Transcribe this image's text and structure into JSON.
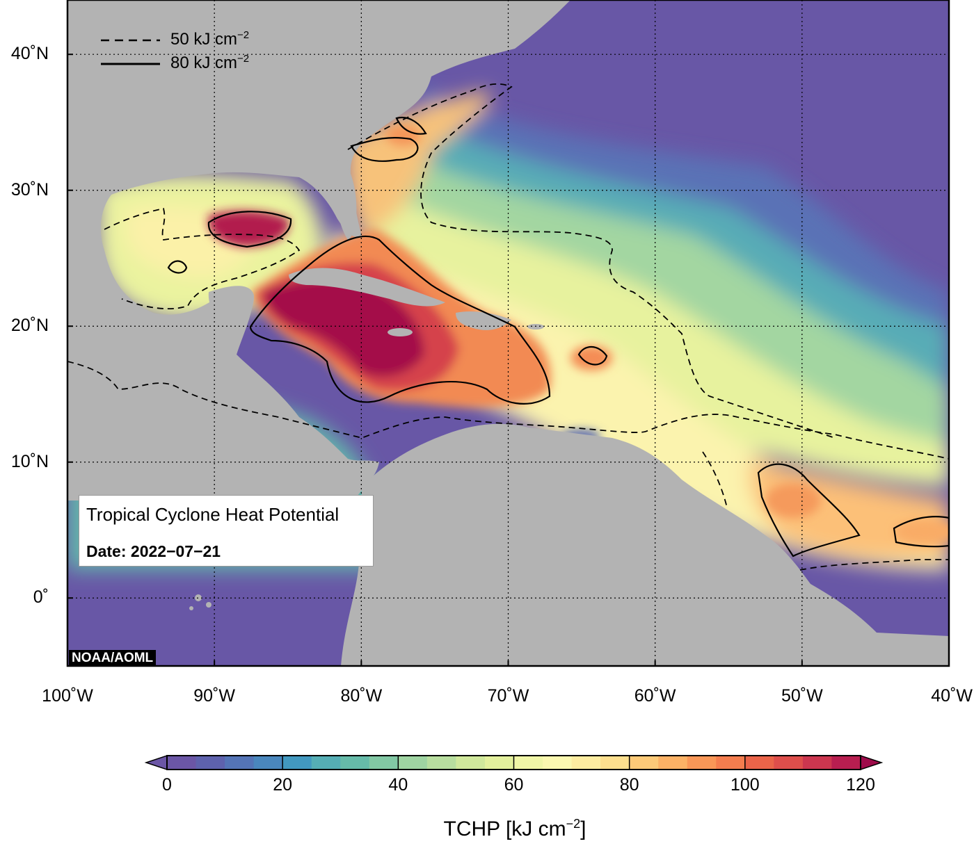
{
  "map": {
    "title": "Tropical Cyclone Heat Potential",
    "date_text": "Date: 2022−07−21",
    "credit": "NOAA/AOML",
    "extent": {
      "lon": [
        -100,
        -40
      ],
      "lat": [
        -5,
        44
      ]
    },
    "lat_ticks": [
      {
        "value": 40,
        "label": "40˚N"
      },
      {
        "value": 30,
        "label": "30˚N"
      },
      {
        "value": 20,
        "label": "20˚N"
      },
      {
        "value": 10,
        "label": "10˚N"
      },
      {
        "value": 0,
        "label": "0˚"
      }
    ],
    "lon_ticks": [
      {
        "value": -100,
        "label": "100˚W"
      },
      {
        "value": -90,
        "label": "90˚W"
      },
      {
        "value": -80,
        "label": "80˚W"
      },
      {
        "value": -70,
        "label": "70˚W"
      },
      {
        "value": -60,
        "label": "60˚W"
      },
      {
        "value": -50,
        "label": "50˚W"
      },
      {
        "value": -40,
        "label": "40˚W"
      }
    ],
    "contour_legend": {
      "dashed": "50 kJ cm",
      "solid": "80 kJ cm",
      "exponent": "−2"
    }
  },
  "colorbar": {
    "title": "TCHP [kJ cm",
    "title_exponent": "−2",
    "title_close": "]",
    "range": [
      0,
      120
    ],
    "step": 5,
    "tick_labels": [
      "0",
      "20",
      "40",
      "60",
      "80",
      "100",
      "120"
    ],
    "colors": [
      "#6b56a6",
      "#5e62ad",
      "#5474b6",
      "#4a87bd",
      "#4299c0",
      "#55aeb5",
      "#66bba9",
      "#82c8a4",
      "#9fd4a2",
      "#b8de9f",
      "#d0e89c",
      "#e3f09d",
      "#f0f6a7",
      "#fbf8b0",
      "#fdecA0",
      "#fddf8e",
      "#fdca78",
      "#fcb266",
      "#f99757",
      "#f47d4e",
      "#ea6449",
      "#de4e4b",
      "#cc364f",
      "#b81e50",
      "#9e0b4a"
    ]
  },
  "colors": {
    "ocean_cold": "#6857a6",
    "land": "#b3b3b3",
    "contour": "#000000"
  }
}
